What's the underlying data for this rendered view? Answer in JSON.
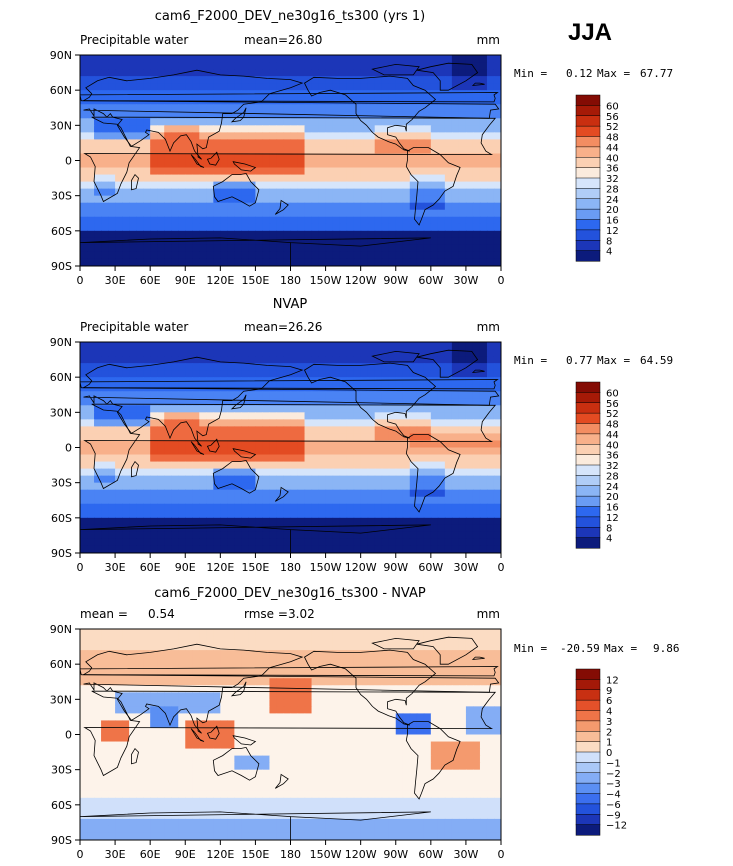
{
  "season": "JJA",
  "panel_colors": [
    "#0c1b7c",
    "#1c36b8",
    "#2352dc",
    "#2d68ef",
    "#4a83f4",
    "#6a9cf4",
    "#8bb5f5",
    "#b0cdf7",
    "#d6e5fb",
    "#fbebdd",
    "#fbd0b3",
    "#f8b08a",
    "#f38d62",
    "#ee6a40",
    "#e34b22",
    "#c92f10",
    "#a61a07",
    "#840c04"
  ],
  "diff_colors": [
    "#0c1b7c",
    "#1c36b8",
    "#2352dc",
    "#3b6fef",
    "#5b8ff3",
    "#84adf5",
    "#aac8f7",
    "#d0e0fa",
    "#fdf3ea",
    "#fbdcc3",
    "#f8bd98",
    "#f49a6e",
    "#ef7448",
    "#e4512a",
    "#c83012",
    "#a31908",
    "#840c04"
  ],
  "chart_data": [
    {
      "type": "heatmap",
      "title": "cam6_F2000_DEV_ne30g16_ts300 (yrs 1)",
      "variable": "Precipitable water",
      "mean_label": "mean=",
      "mean": "26.80",
      "units": "mm",
      "min_label": "Min =",
      "min": "0.12",
      "max_label": "Max =",
      "max": "67.77",
      "xticks": [
        "0",
        "30E",
        "60E",
        "90E",
        "120E",
        "150E",
        "180",
        "150W",
        "120W",
        "90W",
        "60W",
        "30W",
        "0"
      ],
      "yticks": [
        "90N",
        "60N",
        "30N",
        "0",
        "30S",
        "60S",
        "90S"
      ],
      "colorbar_levels": [
        "60",
        "56",
        "52",
        "48",
        "44",
        "40",
        "36",
        "32",
        "28",
        "24",
        "20",
        "16",
        "12",
        "8",
        "4"
      ]
    },
    {
      "type": "heatmap",
      "title": "NVAP",
      "variable": "Precipitable water",
      "mean_label": "mean=",
      "mean": "26.26",
      "units": "mm",
      "min_label": "Min =",
      "min": "0.77",
      "max_label": "Max =",
      "max": "64.59",
      "xticks": [
        "0",
        "30E",
        "60E",
        "90E",
        "120E",
        "150E",
        "180",
        "150W",
        "120W",
        "90W",
        "60W",
        "30W",
        "0"
      ],
      "yticks": [
        "90N",
        "60N",
        "30N",
        "0",
        "30S",
        "60S",
        "90S"
      ],
      "colorbar_levels": [
        "60",
        "56",
        "52",
        "48",
        "44",
        "40",
        "36",
        "32",
        "28",
        "24",
        "20",
        "16",
        "12",
        "8",
        "4"
      ]
    },
    {
      "type": "heatmap",
      "title": "cam6_F2000_DEV_ne30g16_ts300 - NVAP",
      "mean_label": "mean =",
      "mean": "0.54",
      "rmse_label": "rmse =",
      "rmse": "3.02",
      "units": "mm",
      "min_label": "Min =",
      "min": "-20.59",
      "max_label": "Max =",
      "max": "9.86",
      "xticks": [
        "0",
        "30E",
        "60E",
        "90E",
        "120E",
        "150E",
        "180",
        "150W",
        "120W",
        "90W",
        "60W",
        "30W",
        "0"
      ],
      "yticks": [
        "90N",
        "60N",
        "30N",
        "0",
        "30S",
        "60S",
        "90S"
      ],
      "colorbar_levels": [
        "12",
        "9",
        "6",
        "4",
        "3",
        "2",
        "1",
        "0",
        "−1",
        "−2",
        "−3",
        "−4",
        "−6",
        "−9",
        "−12"
      ]
    }
  ]
}
